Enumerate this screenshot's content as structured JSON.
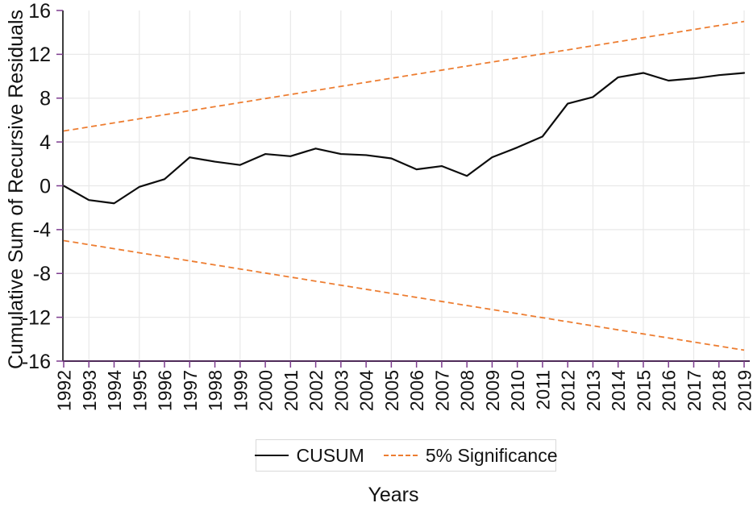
{
  "chart_data": {
    "type": "line",
    "title": "",
    "xlabel": "Years",
    "ylabel": "Cumulative Sum of Recursive Residuals",
    "x_categories": [
      1992,
      1993,
      1994,
      1995,
      1996,
      1997,
      1998,
      1999,
      2000,
      2001,
      2002,
      2003,
      2004,
      2005,
      2006,
      2007,
      2008,
      2009,
      2010,
      2011,
      2012,
      2013,
      2014,
      2015,
      2016,
      2017,
      2018,
      2019
    ],
    "series": [
      {
        "name": "CUSUM",
        "style": "solid",
        "color": "#0d0d0d",
        "values": [
          0.0,
          -1.3,
          -1.6,
          -0.1,
          0.6,
          2.6,
          2.2,
          1.9,
          2.9,
          2.7,
          3.4,
          2.9,
          2.8,
          2.5,
          1.5,
          1.8,
          0.9,
          2.6,
          3.5,
          4.5,
          7.5,
          8.1,
          9.9,
          10.3,
          9.6,
          9.8,
          10.1,
          10.3
        ]
      },
      {
        "name": "5% Significance (upper bound)",
        "style": "dashed",
        "color": "#ed7d31",
        "linear": true,
        "x": [
          1992,
          2019
        ],
        "values": [
          5.0,
          15.0
        ]
      },
      {
        "name": "5% Significance (lower bound)",
        "style": "dashed",
        "color": "#ed7d31",
        "linear": true,
        "x": [
          1992,
          2019
        ],
        "values": [
          -5.0,
          -15.0
        ]
      }
    ],
    "ylim": [
      -16,
      16
    ],
    "y_ticks": [
      16,
      12,
      8,
      4,
      0,
      -4,
      -8,
      -12,
      -16
    ],
    "grid": {
      "horizontal_at": [
        12,
        8,
        4,
        0,
        -4,
        -8,
        -12
      ],
      "vertical_at_years": [
        1993,
        1995,
        1997,
        1999,
        2001,
        2003,
        2005,
        2007,
        2009,
        2011,
        2013,
        2015,
        2017,
        2019
      ],
      "grid_on": true
    },
    "legend_position": "bottom-center"
  },
  "axis_titles": {
    "x": "Years",
    "y": "Cumulative Sum of Recursive Residuals"
  },
  "legend": {
    "items": [
      {
        "label": "CUSUM",
        "swatch": "solid-black-line"
      },
      {
        "label": "5% Significance",
        "swatch": "dashed-orange-line"
      }
    ]
  },
  "colors": {
    "cusum_line": "#0d0d0d",
    "significance_line": "#ed7d31",
    "gridline": "#e9e9e9",
    "x_axis_line": "#4f2b59",
    "y_axis_line": "#3d3d3d",
    "tick_mark": "#7d3c8f",
    "label_text": "#121212"
  }
}
